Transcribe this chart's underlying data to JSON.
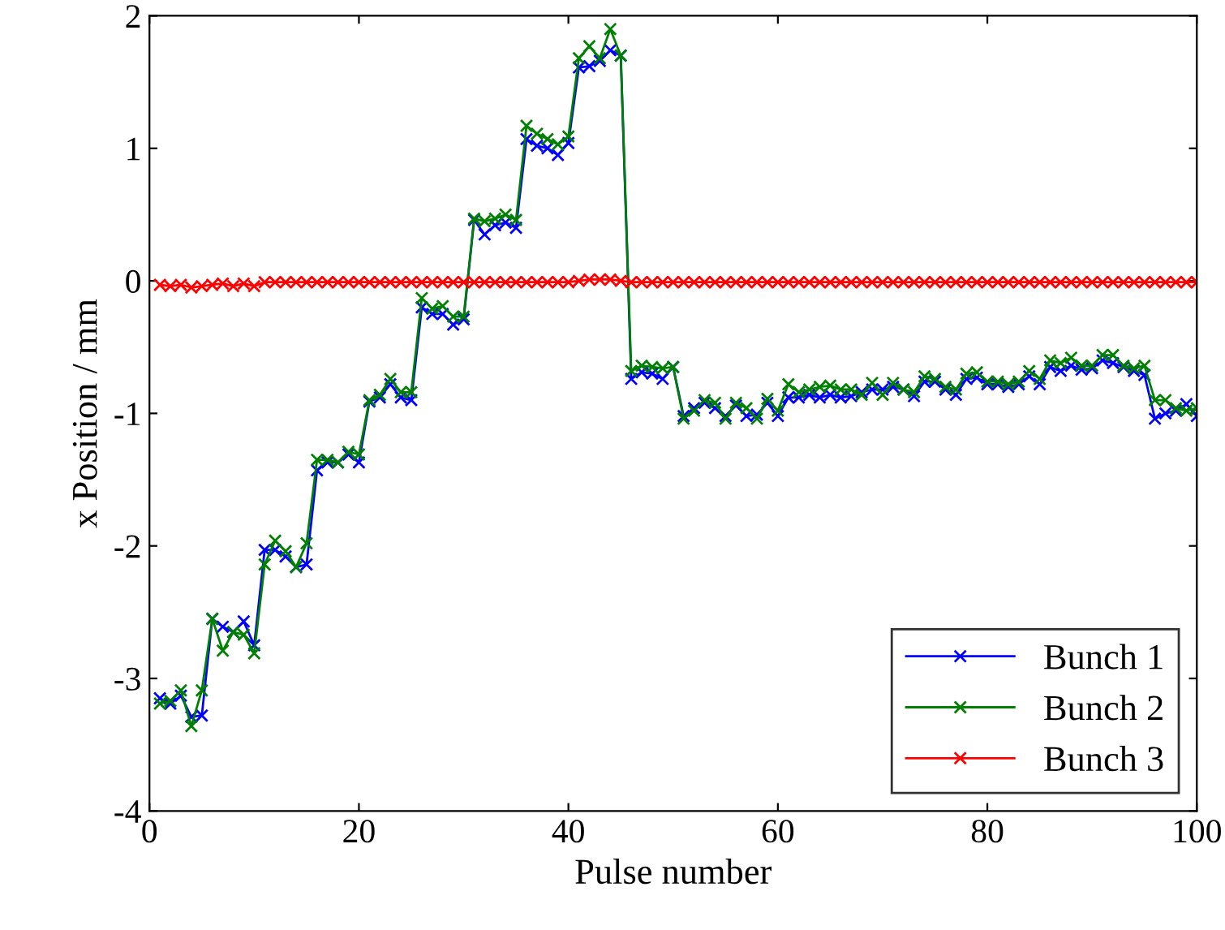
{
  "chart_data": {
    "type": "line",
    "xlabel": "Pulse number",
    "ylabel": "x Position / mm",
    "xlim": [
      0,
      100
    ],
    "xticks": [
      0,
      20,
      40,
      60,
      80,
      100
    ],
    "ylim": [
      -4,
      2
    ],
    "yticks": [
      -4,
      -3,
      -2,
      -1,
      0,
      1,
      2
    ],
    "grid": false,
    "legend": "bottom right",
    "marker": "cross",
    "line_style": "solid",
    "x": [
      1,
      2,
      3,
      4,
      5,
      6,
      7,
      8,
      9,
      10,
      11,
      12,
      13,
      14,
      15,
      16,
      17,
      18,
      19,
      20,
      21,
      22,
      23,
      24,
      25,
      26,
      27,
      28,
      29,
      30,
      31,
      32,
      33,
      34,
      35,
      36,
      37,
      38,
      39,
      40,
      41,
      42,
      43,
      44,
      45,
      46,
      47,
      48,
      49,
      50,
      51,
      52,
      53,
      54,
      55,
      56,
      57,
      58,
      59,
      60,
      61,
      62,
      63,
      64,
      65,
      66,
      67,
      68,
      69,
      70,
      71,
      72,
      73,
      74,
      75,
      76,
      77,
      78,
      79,
      80,
      81,
      82,
      83,
      84,
      85,
      86,
      87,
      88,
      89,
      90,
      91,
      92,
      93,
      94,
      95,
      96,
      97,
      98,
      99,
      100
    ],
    "series": [
      {
        "name": "Bunch 1",
        "color": "#0000ff",
        "values": [
          -3.15,
          -3.19,
          -3.13,
          -3.29,
          -3.28,
          -2.55,
          -2.61,
          -2.65,
          -2.57,
          -2.75,
          -2.03,
          -2.03,
          -2.08,
          -2.16,
          -2.14,
          -1.43,
          -1.37,
          -1.37,
          -1.31,
          -1.37,
          -0.91,
          -0.88,
          -0.78,
          -0.88,
          -0.9,
          -0.2,
          -0.25,
          -0.25,
          -0.33,
          -0.29,
          0.46,
          0.35,
          0.42,
          0.44,
          0.4,
          1.07,
          1.02,
          1.0,
          0.95,
          1.04,
          1.61,
          1.62,
          1.66,
          1.74,
          1.7,
          -0.74,
          -0.69,
          -0.7,
          -0.74,
          -0.65,
          -1.02,
          -0.96,
          -0.92,
          -0.96,
          -1.02,
          -0.94,
          -1.02,
          -1.01,
          -0.92,
          -1.02,
          -0.88,
          -0.88,
          -0.86,
          -0.88,
          -0.86,
          -0.88,
          -0.87,
          -0.84,
          -0.82,
          -0.82,
          -0.8,
          -0.82,
          -0.87,
          -0.76,
          -0.76,
          -0.82,
          -0.86,
          -0.74,
          -0.73,
          -0.78,
          -0.78,
          -0.8,
          -0.78,
          -0.72,
          -0.78,
          -0.65,
          -0.68,
          -0.64,
          -0.67,
          -0.66,
          -0.6,
          -0.62,
          -0.65,
          -0.68,
          -0.71,
          -1.04,
          -1.0,
          -0.98,
          -0.93,
          -1.02
        ]
      },
      {
        "name": "Bunch 2",
        "color": "#008000",
        "values": [
          -3.19,
          -3.17,
          -3.09,
          -3.36,
          -3.09,
          -2.55,
          -2.79,
          -2.65,
          -2.67,
          -2.81,
          -2.14,
          -1.96,
          -2.04,
          -2.16,
          -1.98,
          -1.35,
          -1.35,
          -1.37,
          -1.29,
          -1.31,
          -0.9,
          -0.86,
          -0.74,
          -0.84,
          -0.84,
          -0.13,
          -0.21,
          -0.19,
          -0.27,
          -0.27,
          0.47,
          0.45,
          0.47,
          0.5,
          0.46,
          1.17,
          1.11,
          1.07,
          1.03,
          1.09,
          1.68,
          1.77,
          1.68,
          1.9,
          1.7,
          -0.68,
          -0.64,
          -0.65,
          -0.66,
          -0.65,
          -1.04,
          -0.98,
          -0.9,
          -0.92,
          -1.04,
          -0.92,
          -0.96,
          -1.04,
          -0.89,
          -0.98,
          -0.78,
          -0.84,
          -0.82,
          -0.8,
          -0.79,
          -0.82,
          -0.82,
          -0.86,
          -0.77,
          -0.86,
          -0.77,
          -0.82,
          -0.84,
          -0.72,
          -0.74,
          -0.8,
          -0.82,
          -0.7,
          -0.69,
          -0.76,
          -0.76,
          -0.78,
          -0.76,
          -0.68,
          -0.74,
          -0.6,
          -0.62,
          -0.58,
          -0.64,
          -0.64,
          -0.56,
          -0.56,
          -0.64,
          -0.66,
          -0.64,
          -0.9,
          -0.9,
          -0.96,
          -0.98,
          -0.96
        ]
      },
      {
        "name": "Bunch 3",
        "color": "#ff0000",
        "values": [
          -0.03,
          -0.04,
          -0.03,
          -0.05,
          -0.04,
          -0.03,
          -0.02,
          -0.04,
          -0.02,
          -0.04,
          -0.01,
          -0.01,
          -0.01,
          -0.01,
          -0.01,
          -0.01,
          -0.01,
          -0.01,
          -0.01,
          -0.01,
          -0.01,
          -0.01,
          -0.01,
          -0.01,
          -0.01,
          -0.01,
          -0.01,
          -0.01,
          -0.01,
          -0.01,
          -0.01,
          -0.01,
          -0.01,
          -0.01,
          -0.01,
          -0.01,
          -0.01,
          -0.01,
          -0.01,
          -0.01,
          0.0,
          0.01,
          0.01,
          0.01,
          0.0,
          -0.01,
          -0.01,
          -0.01,
          -0.01,
          -0.01,
          -0.01,
          -0.01,
          -0.01,
          -0.01,
          -0.01,
          -0.01,
          -0.01,
          -0.01,
          -0.01,
          -0.01,
          -0.01,
          -0.01,
          -0.01,
          -0.01,
          -0.01,
          -0.01,
          -0.01,
          -0.01,
          -0.01,
          -0.01,
          -0.01,
          -0.01,
          -0.01,
          -0.01,
          -0.01,
          -0.01,
          -0.01,
          -0.01,
          -0.01,
          -0.01,
          -0.01,
          -0.01,
          -0.01,
          -0.01,
          -0.01,
          -0.01,
          -0.01,
          -0.01,
          -0.01,
          -0.01,
          -0.01,
          -0.01,
          -0.01,
          -0.01,
          -0.01,
          -0.01,
          -0.01,
          -0.01,
          -0.01,
          -0.01
        ]
      }
    ]
  }
}
